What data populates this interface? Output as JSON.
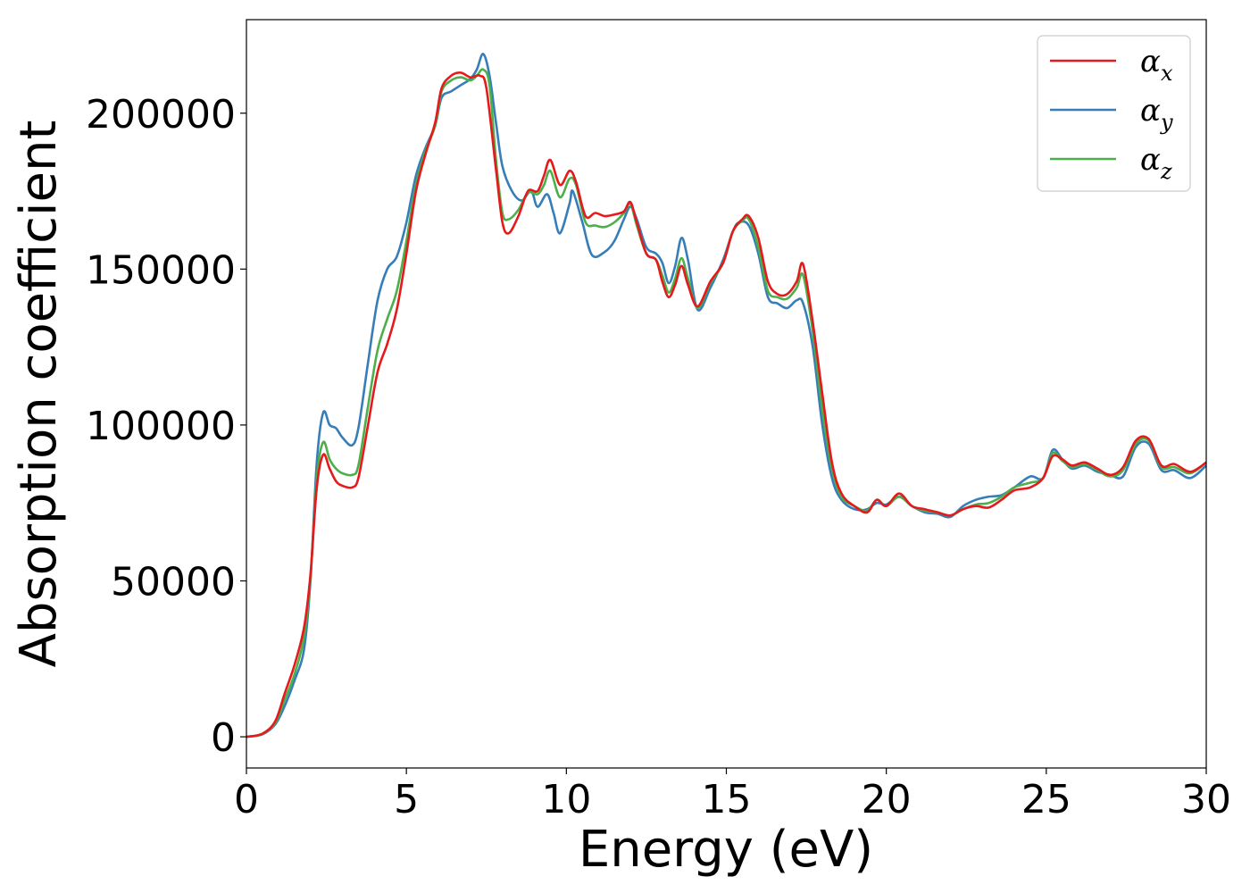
{
  "chart_data": {
    "type": "line",
    "title": "",
    "xlabel": "Energy (eV)",
    "ylabel": "Absorption coefficient",
    "xlim": [
      0,
      30
    ],
    "ylim": [
      -10000,
      230000
    ],
    "xticks": [
      0,
      5,
      10,
      15,
      20,
      25,
      30
    ],
    "xtick_labels": [
      "0",
      "5",
      "10",
      "15",
      "20",
      "25",
      "30"
    ],
    "yticks": [
      0,
      50000,
      100000,
      150000,
      200000
    ],
    "ytick_labels": [
      "0",
      "50000",
      "100000",
      "150000",
      "200000"
    ],
    "grid": false,
    "legend_position": "top-right",
    "series": [
      {
        "name": "αx",
        "symbol": "α",
        "sub": "x",
        "color": "#e41a1c",
        "points": [
          [
            0,
            0
          ],
          [
            0.5,
            1000
          ],
          [
            0.9,
            5000
          ],
          [
            1.2,
            14000
          ],
          [
            1.5,
            23000
          ],
          [
            1.8,
            35000
          ],
          [
            2.0,
            52000
          ],
          [
            2.2,
            80000
          ],
          [
            2.4,
            90500
          ],
          [
            2.6,
            86000
          ],
          [
            2.8,
            82000
          ],
          [
            3.0,
            80500
          ],
          [
            3.3,
            80000
          ],
          [
            3.5,
            83000
          ],
          [
            3.8,
            100000
          ],
          [
            4.1,
            117000
          ],
          [
            4.4,
            126000
          ],
          [
            4.7,
            137000
          ],
          [
            5.0,
            155000
          ],
          [
            5.3,
            175000
          ],
          [
            5.6,
            187000
          ],
          [
            5.9,
            197000
          ],
          [
            6.1,
            208000
          ],
          [
            6.4,
            212000
          ],
          [
            6.7,
            213000
          ],
          [
            7.0,
            211500
          ],
          [
            7.3,
            212000
          ],
          [
            7.5,
            208000
          ],
          [
            7.8,
            182000
          ],
          [
            8.0,
            165000
          ],
          [
            8.2,
            161500
          ],
          [
            8.5,
            167000
          ],
          [
            8.8,
            175000
          ],
          [
            9.1,
            175000
          ],
          [
            9.3,
            180000
          ],
          [
            9.5,
            185000
          ],
          [
            9.8,
            177000
          ],
          [
            10.1,
            181500
          ],
          [
            10.3,
            178000
          ],
          [
            10.6,
            167000
          ],
          [
            10.9,
            168000
          ],
          [
            11.2,
            167000
          ],
          [
            11.5,
            167500
          ],
          [
            11.8,
            168500
          ],
          [
            12.0,
            171500
          ],
          [
            12.2,
            165000
          ],
          [
            12.5,
            155000
          ],
          [
            12.8,
            153000
          ],
          [
            13.0,
            146000
          ],
          [
            13.2,
            141000
          ],
          [
            13.4,
            145000
          ],
          [
            13.6,
            151000
          ],
          [
            13.8,
            145000
          ],
          [
            14.1,
            138000
          ],
          [
            14.5,
            146000
          ],
          [
            14.9,
            152000
          ],
          [
            15.2,
            162000
          ],
          [
            15.5,
            166000
          ],
          [
            15.7,
            167000
          ],
          [
            16.0,
            160000
          ],
          [
            16.3,
            146000
          ],
          [
            16.6,
            142000
          ],
          [
            16.9,
            142000
          ],
          [
            17.2,
            146000
          ],
          [
            17.4,
            151500
          ],
          [
            17.7,
            133000
          ],
          [
            18.0,
            110000
          ],
          [
            18.3,
            88000
          ],
          [
            18.6,
            78000
          ],
          [
            19.0,
            74000
          ],
          [
            19.4,
            72000
          ],
          [
            19.7,
            76000
          ],
          [
            20.0,
            74000
          ],
          [
            20.4,
            78000
          ],
          [
            20.8,
            74000
          ],
          [
            21.2,
            73000
          ],
          [
            21.6,
            72000
          ],
          [
            22.0,
            71000
          ],
          [
            22.4,
            73000
          ],
          [
            22.8,
            74000
          ],
          [
            23.2,
            73500
          ],
          [
            23.6,
            76000
          ],
          [
            24.0,
            79000
          ],
          [
            24.5,
            80000
          ],
          [
            24.9,
            83000
          ],
          [
            25.2,
            90000
          ],
          [
            25.5,
            89000
          ],
          [
            25.8,
            87000
          ],
          [
            26.2,
            88000
          ],
          [
            26.6,
            86000
          ],
          [
            27.0,
            84000
          ],
          [
            27.4,
            86500
          ],
          [
            27.8,
            95000
          ],
          [
            28.2,
            95500
          ],
          [
            28.6,
            87000
          ],
          [
            29.0,
            87500
          ],
          [
            29.5,
            85000
          ],
          [
            30.0,
            88000
          ]
        ]
      },
      {
        "name": "αy",
        "symbol": "α",
        "sub": "y",
        "color": "#377eb8",
        "points": [
          [
            0,
            0
          ],
          [
            0.5,
            800
          ],
          [
            0.9,
            4000
          ],
          [
            1.2,
            10000
          ],
          [
            1.5,
            18000
          ],
          [
            1.8,
            28000
          ],
          [
            2.0,
            50000
          ],
          [
            2.2,
            88000
          ],
          [
            2.4,
            104000
          ],
          [
            2.6,
            100000
          ],
          [
            2.8,
            99000
          ],
          [
            3.0,
            96000
          ],
          [
            3.3,
            93500
          ],
          [
            3.5,
            99000
          ],
          [
            3.8,
            120000
          ],
          [
            4.1,
            140000
          ],
          [
            4.4,
            150000
          ],
          [
            4.7,
            154000
          ],
          [
            5.0,
            165000
          ],
          [
            5.3,
            180000
          ],
          [
            5.6,
            189000
          ],
          [
            5.9,
            196000
          ],
          [
            6.1,
            205000
          ],
          [
            6.4,
            207000
          ],
          [
            6.7,
            209000
          ],
          [
            7.0,
            211000
          ],
          [
            7.2,
            214000
          ],
          [
            7.4,
            219000
          ],
          [
            7.6,
            212000
          ],
          [
            7.8,
            197000
          ],
          [
            8.0,
            183000
          ],
          [
            8.3,
            175000
          ],
          [
            8.6,
            172000
          ],
          [
            8.9,
            175000
          ],
          [
            9.1,
            170000
          ],
          [
            9.4,
            174000
          ],
          [
            9.6,
            168000
          ],
          [
            9.8,
            161500
          ],
          [
            10.1,
            171000
          ],
          [
            10.2,
            175000
          ],
          [
            10.5,
            165000
          ],
          [
            10.8,
            154500
          ],
          [
            11.2,
            155500
          ],
          [
            11.5,
            159000
          ],
          [
            11.8,
            166000
          ],
          [
            12.0,
            170000
          ],
          [
            12.2,
            166000
          ],
          [
            12.5,
            157000
          ],
          [
            12.8,
            155000
          ],
          [
            13.0,
            152000
          ],
          [
            13.2,
            145500
          ],
          [
            13.4,
            151000
          ],
          [
            13.6,
            160000
          ],
          [
            13.8,
            153000
          ],
          [
            14.1,
            137000
          ],
          [
            14.5,
            144000
          ],
          [
            14.9,
            153000
          ],
          [
            15.2,
            162000
          ],
          [
            15.4,
            165000
          ],
          [
            15.7,
            164000
          ],
          [
            16.0,
            155000
          ],
          [
            16.3,
            141000
          ],
          [
            16.6,
            139000
          ],
          [
            16.9,
            137500
          ],
          [
            17.2,
            140000
          ],
          [
            17.4,
            139000
          ],
          [
            17.7,
            125000
          ],
          [
            18.0,
            100000
          ],
          [
            18.3,
            83000
          ],
          [
            18.6,
            76000
          ],
          [
            19.0,
            73000
          ],
          [
            19.4,
            73000
          ],
          [
            19.7,
            75000
          ],
          [
            20.0,
            74500
          ],
          [
            20.4,
            77000
          ],
          [
            20.8,
            74000
          ],
          [
            21.2,
            72000
          ],
          [
            21.6,
            71500
          ],
          [
            22.0,
            70500
          ],
          [
            22.4,
            74000
          ],
          [
            22.8,
            76000
          ],
          [
            23.2,
            77000
          ],
          [
            23.6,
            77500
          ],
          [
            24.0,
            80000
          ],
          [
            24.5,
            83500
          ],
          [
            24.9,
            83000
          ],
          [
            25.2,
            92000
          ],
          [
            25.5,
            89000
          ],
          [
            25.8,
            86000
          ],
          [
            26.2,
            87000
          ],
          [
            26.6,
            85000
          ],
          [
            27.0,
            84000
          ],
          [
            27.4,
            83500
          ],
          [
            27.8,
            93000
          ],
          [
            28.2,
            94000
          ],
          [
            28.6,
            85500
          ],
          [
            29.0,
            85500
          ],
          [
            29.5,
            83000
          ],
          [
            30.0,
            87000
          ]
        ]
      },
      {
        "name": "αz",
        "symbol": "α",
        "sub": "z",
        "color": "#4daf4a",
        "points": [
          [
            0,
            0
          ],
          [
            0.5,
            900
          ],
          [
            0.9,
            4500
          ],
          [
            1.2,
            12000
          ],
          [
            1.5,
            20000
          ],
          [
            1.8,
            32000
          ],
          [
            2.0,
            51000
          ],
          [
            2.2,
            83000
          ],
          [
            2.4,
            94500
          ],
          [
            2.6,
            89000
          ],
          [
            2.8,
            86000
          ],
          [
            3.0,
            84500
          ],
          [
            3.3,
            84000
          ],
          [
            3.5,
            87000
          ],
          [
            3.8,
            106000
          ],
          [
            4.1,
            124000
          ],
          [
            4.4,
            134000
          ],
          [
            4.7,
            143000
          ],
          [
            5.0,
            159000
          ],
          [
            5.3,
            177000
          ],
          [
            5.6,
            188000
          ],
          [
            5.9,
            196000
          ],
          [
            6.1,
            207000
          ],
          [
            6.4,
            210500
          ],
          [
            6.7,
            211500
          ],
          [
            7.0,
            210500
          ],
          [
            7.2,
            212000
          ],
          [
            7.4,
            214000
          ],
          [
            7.6,
            209000
          ],
          [
            7.8,
            185000
          ],
          [
            8.0,
            168000
          ],
          [
            8.2,
            166000
          ],
          [
            8.5,
            169000
          ],
          [
            8.8,
            174500
          ],
          [
            9.1,
            174000
          ],
          [
            9.3,
            177000
          ],
          [
            9.5,
            181500
          ],
          [
            9.8,
            173000
          ],
          [
            10.1,
            179000
          ],
          [
            10.3,
            177000
          ],
          [
            10.6,
            165000
          ],
          [
            10.9,
            164000
          ],
          [
            11.2,
            163500
          ],
          [
            11.5,
            165000
          ],
          [
            11.8,
            168000
          ],
          [
            12.0,
            171000
          ],
          [
            12.2,
            164000
          ],
          [
            12.5,
            155000
          ],
          [
            12.8,
            153000
          ],
          [
            13.0,
            148000
          ],
          [
            13.2,
            142500
          ],
          [
            13.4,
            147000
          ],
          [
            13.6,
            153500
          ],
          [
            13.8,
            147000
          ],
          [
            14.1,
            137500
          ],
          [
            14.5,
            145500
          ],
          [
            14.9,
            152000
          ],
          [
            15.2,
            162000
          ],
          [
            15.5,
            165500
          ],
          [
            15.7,
            166000
          ],
          [
            16.0,
            157000
          ],
          [
            16.3,
            143000
          ],
          [
            16.6,
            141000
          ],
          [
            16.9,
            140500
          ],
          [
            17.2,
            144000
          ],
          [
            17.4,
            148000
          ],
          [
            17.7,
            130000
          ],
          [
            18.0,
            105000
          ],
          [
            18.3,
            86000
          ],
          [
            18.6,
            77000
          ],
          [
            19.0,
            74000
          ],
          [
            19.4,
            72500
          ],
          [
            19.7,
            76000
          ],
          [
            20.0,
            74000
          ],
          [
            20.4,
            77000
          ],
          [
            20.8,
            74000
          ],
          [
            21.2,
            72500
          ],
          [
            21.6,
            72000
          ],
          [
            22.0,
            71000
          ],
          [
            22.4,
            73000
          ],
          [
            22.8,
            74500
          ],
          [
            23.2,
            75000
          ],
          [
            23.6,
            77000
          ],
          [
            24.0,
            80000
          ],
          [
            24.5,
            81500
          ],
          [
            24.9,
            83000
          ],
          [
            25.2,
            91000
          ],
          [
            25.5,
            88500
          ],
          [
            25.8,
            86500
          ],
          [
            26.2,
            87500
          ],
          [
            26.6,
            85500
          ],
          [
            27.0,
            83500
          ],
          [
            27.4,
            85500
          ],
          [
            27.8,
            94000
          ],
          [
            28.2,
            95000
          ],
          [
            28.6,
            86500
          ],
          [
            29.0,
            86500
          ],
          [
            29.5,
            84500
          ],
          [
            30.0,
            88000
          ]
        ]
      }
    ]
  }
}
